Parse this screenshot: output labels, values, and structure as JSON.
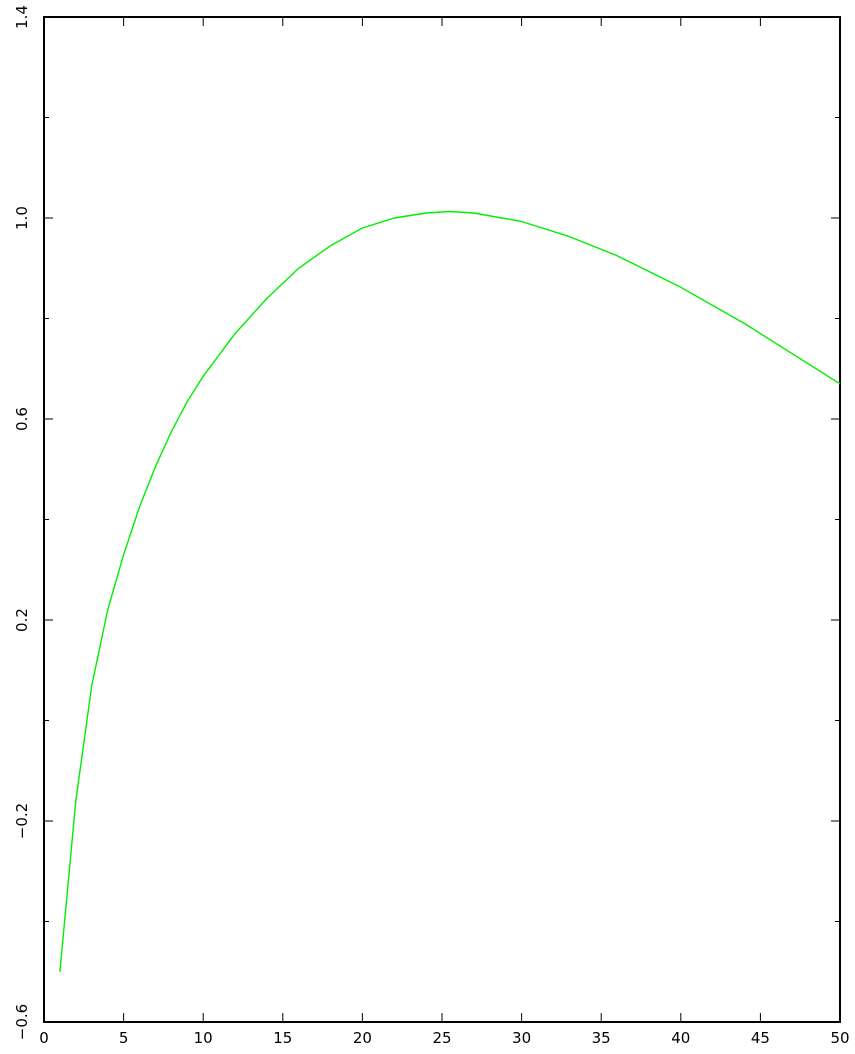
{
  "chart_data": {
    "type": "line",
    "title": "",
    "xlabel": "",
    "ylabel": "",
    "xlim": [
      0,
      50
    ],
    "ylim": [
      -0.6,
      1.4
    ],
    "x_ticks": [
      0,
      5,
      10,
      15,
      20,
      25,
      30,
      35,
      40,
      45,
      50
    ],
    "x_tick_labels": [
      "0",
      "5",
      "10",
      "15",
      "20",
      "25",
      "30",
      "35",
      "40",
      "45",
      "50"
    ],
    "y_ticks": [
      -0.6,
      -0.2,
      0.2,
      0.6,
      1.0,
      1.4
    ],
    "y_tick_labels": [
      "−0.6",
      "−0.2",
      "0.2",
      "0.6",
      "1.0",
      "1.4"
    ],
    "y_minor_ticks": [
      -0.4,
      0.0,
      0.4,
      0.8,
      1.2
    ],
    "grid": false,
    "legend": "none",
    "series": [
      {
        "color": "#00ee00",
        "x": [
          1,
          2,
          3,
          4,
          5,
          6,
          7,
          8,
          9,
          10,
          12,
          14,
          16,
          18,
          20,
          22,
          24,
          25.5,
          27,
          30,
          33,
          36,
          40,
          44,
          47,
          50
        ],
        "y": [
          -0.5,
          -0.16,
          0.07,
          0.22,
          0.33,
          0.425,
          0.505,
          0.575,
          0.635,
          0.685,
          0.77,
          0.84,
          0.9,
          0.945,
          0.98,
          1.0,
          1.01,
          1.013,
          1.01,
          0.993,
          0.963,
          0.925,
          0.862,
          0.79,
          0.73,
          0.67
        ]
      }
    ]
  }
}
